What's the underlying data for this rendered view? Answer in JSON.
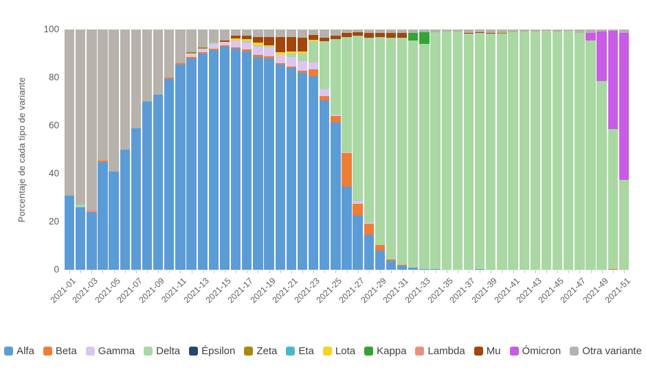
{
  "y_axis": {
    "title": "Porcentaje de cada tipo de variante",
    "ticks": [
      "0",
      "20",
      "40",
      "60",
      "80",
      "100"
    ],
    "min": 0,
    "max": 100
  },
  "x_axis": {
    "tick_labels": [
      "2021-01",
      "2021-03",
      "2021-05",
      "2021-07",
      "2021-09",
      "2021-11",
      "2021-13",
      "2021-15",
      "2021-17",
      "2021-19",
      "2021-21",
      "2021-23",
      "2021-25",
      "2021-27",
      "2021-29",
      "2021-31",
      "2021-33",
      "2021-35",
      "2021-37",
      "2021-39",
      "2021-41",
      "2021-43",
      "2021-45",
      "2021-47",
      "2021-49",
      "2021-51"
    ]
  },
  "chart_data": {
    "type": "bar",
    "stacked": true,
    "title": "",
    "xlabel": "",
    "ylabel": "Porcentaje de cada tipo de variante",
    "ylim": [
      0,
      100
    ],
    "legend_position": "bottom",
    "grid": false,
    "categories": [
      "2021-01",
      "2021-02",
      "2021-03",
      "2021-04",
      "2021-05",
      "2021-06",
      "2021-07",
      "2021-08",
      "2021-09",
      "2021-10",
      "2021-11",
      "2021-12",
      "2021-13",
      "2021-14",
      "2021-15",
      "2021-16",
      "2021-17",
      "2021-18",
      "2021-19",
      "2021-20",
      "2021-21",
      "2021-22",
      "2021-23",
      "2021-24",
      "2021-25",
      "2021-26",
      "2021-27",
      "2021-28",
      "2021-29",
      "2021-30",
      "2021-31",
      "2021-32",
      "2021-33",
      "2021-34",
      "2021-35",
      "2021-36",
      "2021-37",
      "2021-38",
      "2021-39",
      "2021-40",
      "2021-41",
      "2021-42",
      "2021-43",
      "2021-44",
      "2021-45",
      "2021-46",
      "2021-47",
      "2021-48",
      "2021-49",
      "2021-50",
      "2021-51"
    ],
    "series": [
      {
        "name": "Alfa",
        "color": "#5b9cd6",
        "values": [
          31,
          26,
          24,
          45,
          41,
          50,
          59,
          70,
          73,
          79.5,
          85.5,
          88,
          90,
          91.5,
          93,
          92,
          91,
          88.5,
          88,
          85.5,
          84,
          82,
          80.5,
          70.5,
          61.5,
          34.5,
          22.5,
          14.5,
          8,
          3.7,
          1.8,
          0.8,
          0.3,
          0.2,
          0,
          0,
          0,
          0.3,
          0,
          0,
          0,
          0,
          0,
          0,
          0,
          0,
          0,
          0,
          0,
          0,
          0
        ]
      },
      {
        "name": "Beta",
        "color": "#ee7d36",
        "values": [
          0,
          0,
          0,
          0.5,
          0,
          0,
          0,
          0,
          0,
          0.5,
          0.5,
          0.5,
          0.5,
          0.5,
          0.5,
          0.7,
          0.8,
          1,
          1,
          0.5,
          0.5,
          1,
          2.9,
          1.9,
          2.4,
          14,
          5,
          4.7,
          2.3,
          0.5,
          0.3,
          0,
          0,
          0,
          0,
          0,
          0,
          0,
          0,
          0,
          0,
          0,
          0,
          0,
          0,
          0,
          0,
          0,
          0,
          0.4,
          0
        ]
      },
      {
        "name": "Gamma",
        "color": "#dcc5f2",
        "values": [
          0,
          0,
          0,
          0,
          0,
          0,
          0,
          0,
          0,
          0,
          0,
          1.5,
          1.5,
          2,
          1.5,
          2.8,
          2.7,
          3.5,
          3.5,
          3.5,
          4,
          4,
          2.8,
          2.8,
          0.7,
          0.5,
          1,
          0.5,
          0,
          0,
          0,
          0,
          0,
          0,
          0,
          0,
          0,
          0,
          0,
          0,
          0,
          0,
          0,
          0,
          0,
          0,
          0,
          0,
          0,
          0,
          0
        ]
      },
      {
        "name": "Delta",
        "color": "#a9d8a2",
        "values": [
          0,
          1.2,
          0,
          0,
          0,
          0,
          0,
          0,
          0,
          0,
          0,
          0,
          0,
          0.5,
          0,
          0,
          0.7,
          0.5,
          0.5,
          0,
          1.5,
          3,
          9,
          20,
          31.4,
          48,
          69,
          77,
          86.5,
          92.5,
          94.4,
          94.7,
          93.7,
          98.8,
          99.2,
          99.2,
          98.3,
          98.4,
          98.2,
          98.2,
          99,
          99.2,
          99.2,
          99.3,
          99.2,
          99.4,
          98.5,
          95.5,
          78.5,
          58.1,
          37.5
        ]
      },
      {
        "name": "Épsilon",
        "color": "#26466d",
        "values": [
          0,
          0,
          0,
          0,
          0,
          0,
          0,
          0,
          0,
          0,
          0,
          0,
          0,
          0,
          0,
          0,
          0,
          0,
          0,
          0,
          0,
          0,
          0,
          0,
          0,
          0,
          0,
          0,
          0,
          0,
          0,
          0,
          0,
          0,
          0,
          0,
          0,
          0,
          0,
          0,
          0,
          0,
          0,
          0,
          0,
          0,
          0,
          0,
          0,
          0,
          0
        ]
      },
      {
        "name": "Zeta",
        "color": "#a88a0b",
        "values": [
          0,
          0,
          0,
          0,
          0,
          0,
          0,
          0,
          0,
          0,
          0,
          0.5,
          0.7,
          0,
          0,
          0,
          0,
          0,
          0,
          0,
          0,
          0,
          0,
          0,
          0,
          0,
          0,
          0,
          0,
          0,
          0,
          0,
          0,
          0,
          0,
          0,
          0,
          0,
          0,
          0.5,
          0,
          0,
          0,
          0,
          0,
          0,
          0,
          0,
          0,
          0,
          0
        ]
      },
      {
        "name": "Eta",
        "color": "#4ab8c9",
        "values": [
          0,
          0,
          0,
          0,
          0,
          0,
          0,
          0,
          0,
          0,
          0,
          0,
          0,
          0,
          0,
          0,
          0,
          0,
          0,
          0,
          0,
          0,
          0,
          0,
          0,
          0,
          0,
          0,
          0,
          0,
          0,
          0,
          0,
          0,
          0,
          0,
          0,
          0,
          0,
          0,
          0,
          0,
          0,
          0,
          0,
          0,
          0,
          0,
          0,
          0,
          0
        ]
      },
      {
        "name": "Lota",
        "color": "#f3d429",
        "values": [
          0,
          0,
          0,
          0,
          0,
          0,
          0,
          0,
          0,
          0,
          0,
          0,
          0,
          0,
          0,
          0.7,
          0.8,
          1,
          0.5,
          1,
          1,
          1,
          0.5,
          0,
          0,
          0,
          0,
          0,
          0,
          0,
          0,
          0,
          0,
          0,
          0,
          0,
          0,
          0,
          0,
          0,
          0,
          0,
          0,
          0,
          0,
          0,
          0,
          0,
          0,
          0,
          0
        ]
      },
      {
        "name": "Kappa",
        "color": "#33a532",
        "values": [
          0,
          0,
          0,
          0,
          0,
          0,
          0,
          0,
          0,
          0,
          0,
          0,
          0,
          0,
          0,
          0,
          0,
          0,
          0,
          0,
          0,
          0,
          0,
          0,
          0,
          0,
          0,
          0,
          0,
          0,
          0,
          3,
          5,
          0,
          0,
          0,
          0,
          0,
          0,
          0,
          0,
          0,
          0,
          0,
          0,
          0,
          0,
          0,
          0,
          0,
          0
        ]
      },
      {
        "name": "Lambda",
        "color": "#e9917f",
        "values": [
          0,
          0,
          0.8,
          0,
          0,
          0,
          0,
          0,
          0,
          0,
          0,
          0,
          0,
          0,
          0,
          0,
          0,
          0,
          0,
          0,
          0,
          0,
          0,
          0,
          0,
          0,
          0,
          0,
          0,
          0,
          0,
          0,
          0,
          0,
          0,
          0,
          0,
          0,
          0,
          0,
          0,
          0,
          0,
          0,
          0,
          0,
          0,
          0,
          0,
          0,
          0
        ]
      },
      {
        "name": "Mu",
        "color": "#a4450c",
        "values": [
          0,
          0,
          0,
          0,
          0,
          0,
          0,
          0,
          0,
          0,
          0,
          0,
          0,
          0,
          0.5,
          1.3,
          1.5,
          2.5,
          3.5,
          6.5,
          6,
          5.5,
          2,
          1.5,
          1.5,
          1.5,
          1.5,
          1.8,
          1.7,
          1.8,
          2,
          0,
          0,
          0,
          0,
          0,
          0.4,
          0.3,
          0.5,
          0,
          0,
          0,
          0,
          0,
          0,
          0,
          0,
          0,
          0,
          0,
          0
        ]
      },
      {
        "name": "Ómicron",
        "color": "#c85ce4",
        "values": [
          0,
          0,
          0,
          0,
          0,
          0,
          0,
          0,
          0,
          0,
          0,
          0,
          0,
          0,
          0,
          0,
          0,
          0,
          0,
          0,
          0,
          0,
          0,
          0,
          0,
          0,
          0,
          0,
          0,
          0,
          0,
          0,
          0,
          0,
          0,
          0,
          0,
          0,
          0,
          0,
          0,
          0,
          0,
          0,
          0,
          0,
          0,
          3,
          20.7,
          41,
          61
        ]
      },
      {
        "name": "Otra variante",
        "color": "#b7b2ab",
        "values": [
          69,
          72.8,
          75.2,
          54.5,
          59,
          50,
          41,
          30,
          27,
          20,
          14,
          9.5,
          7.3,
          5.5,
          4.5,
          2.5,
          2.5,
          3,
          3,
          3,
          3,
          3.5,
          2.3,
          3.3,
          2.5,
          1.5,
          1,
          1.5,
          1.5,
          1.5,
          1.5,
          1.5,
          1,
          1,
          0.8,
          0.8,
          1.3,
          1,
          1.3,
          1.3,
          1,
          0.8,
          0.8,
          0.7,
          0.8,
          0.6,
          1.5,
          1.5,
          0.8,
          0.5,
          1.5
        ]
      }
    ]
  }
}
